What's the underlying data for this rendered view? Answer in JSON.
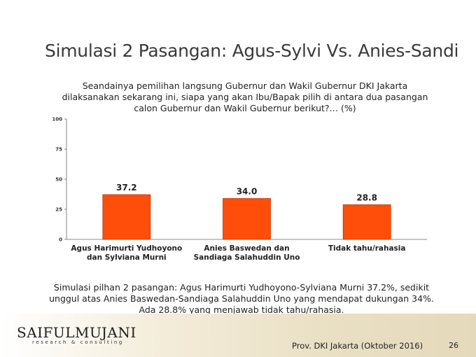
{
  "slide": {
    "title": "Simulasi 2 Pasangan: Agus-Sylvi Vs. Anies-Sandi",
    "question": "Seandainya pemilihan langsung Gubernur dan Wakil Gubernur DKI Jakarta dilaksanakan sekarang ini, siapa yang akan Ibu/Bapak pilih di antara dua pasangan calon Gubernur dan Wakil Gubernur berikut?… (%)",
    "summary": "Simulasi pilhan 2 pasangan: Agus Harimurti Yudhoyono-Sylviana Murni 37.2%, sedikit unggul atas Anies Baswedan-Sandiaga Salahuddin Uno yang mendapat dukungan 34%. Ada 28.8% yang menjawab tidak tahu/rahasia.",
    "logo_main": "SAIFULMUJANI",
    "logo_sub": "research & consulting",
    "source": "Prov. DKI Jakarta (Oktober 2016)",
    "page_number": "26"
  },
  "chart_data": {
    "type": "bar",
    "categories": [
      [
        "Agus Harimurti Yudhoyono",
        "dan Sylviana Murni"
      ],
      [
        "Anies Baswedan dan",
        "Sandiaga Salahuddin Uno"
      ],
      [
        "Tidak tahu/rahasia"
      ]
    ],
    "values": [
      37.2,
      34.0,
      28.8
    ],
    "value_labels": [
      "37.2",
      "34.0",
      "28.8"
    ],
    "yticks": [
      0,
      25,
      50,
      75,
      100
    ],
    "ylim": [
      0,
      100
    ],
    "grid": false,
    "bar_color": "#ff4d0a"
  }
}
